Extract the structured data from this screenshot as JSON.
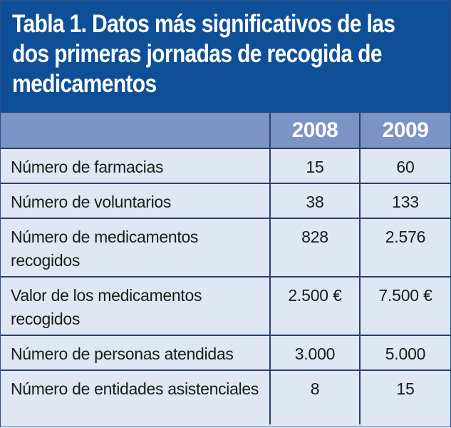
{
  "table": {
    "title": "Tabla 1. Datos más significativos de las dos primeras jornadas de recogida de medicamentos",
    "header": {
      "label": "",
      "col_2008": "2008",
      "col_2009": "2009"
    },
    "rows": [
      {
        "label": "Número de farmacias",
        "v2008": "15",
        "v2009": "60"
      },
      {
        "label": "Número de voluntarios",
        "v2008": "38",
        "v2009": "133"
      },
      {
        "label": "Número de medicamentos recogidos",
        "v2008": "828",
        "v2009": "2.576"
      },
      {
        "label": "Valor de los medicamentos recogidos",
        "v2008": "2.500 €",
        "v2009": "7.500 €"
      },
      {
        "label": "Número de personas atendidas",
        "v2008": "3.000",
        "v2009": "5.000"
      },
      {
        "label": "Número de entidades asistenciales",
        "v2008": "8",
        "v2009": "15"
      }
    ]
  },
  "colors": {
    "title_background": "#0e4f98",
    "header_background": "#7c93c6",
    "body_background": "#dfe7f4",
    "grid_lines": "#2a3f64"
  }
}
